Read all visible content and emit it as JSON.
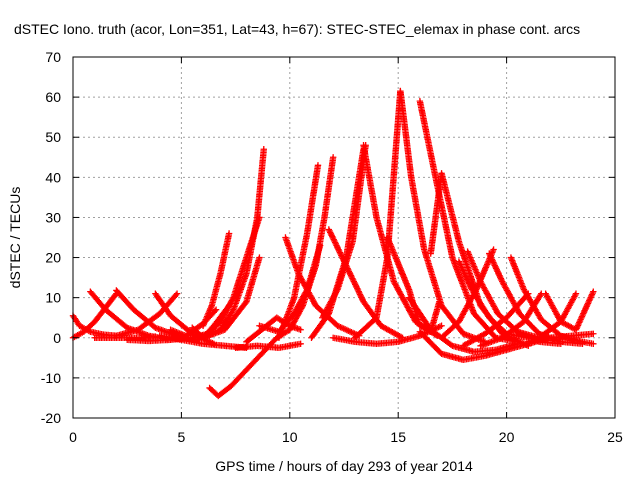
{
  "chart_data": {
    "type": "scatter",
    "title": "dSTEC Iono. truth (acor, Lon=351, Lat=43, h=67): STEC-STEC_elemax in phase cont. arcs",
    "xlabel": "GPS time / hours of day 293 of year 2014",
    "ylabel": "dSTEC  / TECUs",
    "xlim": [
      0,
      25
    ],
    "ylim": [
      -20,
      70
    ],
    "xticks": [
      0,
      5,
      10,
      15,
      20,
      25
    ],
    "yticks": [
      -20,
      -10,
      0,
      10,
      20,
      30,
      40,
      50,
      60,
      70
    ],
    "grid": true,
    "marker": "plus",
    "color": "#ff0000",
    "series": [
      {
        "x": [
          0.0,
          0.3,
          0.8,
          1.4,
          2.0
        ],
        "y": [
          5.5,
          3.0,
          1.5,
          0.8,
          0.5
        ]
      },
      {
        "x": [
          0.0,
          0.5,
          1.0,
          1.5,
          2.0
        ],
        "y": [
          0.0,
          1.5,
          4.0,
          7.5,
          11.0
        ]
      },
      {
        "x": [
          0.8,
          1.5,
          2.5,
          3.5,
          4.5
        ],
        "y": [
          11.5,
          7.0,
          2.5,
          0.5,
          -0.5
        ]
      },
      {
        "x": [
          1.0,
          2.0,
          3.0,
          3.8
        ],
        "y": [
          0.0,
          0.0,
          0.0,
          0.3
        ]
      },
      {
        "x": [
          2.0,
          2.8,
          3.8,
          4.8,
          5.8
        ],
        "y": [
          11.8,
          7.0,
          2.5,
          0.5,
          -0.5
        ]
      },
      {
        "x": [
          2.0,
          3.0,
          4.0,
          4.8
        ],
        "y": [
          0.5,
          2.0,
          6.0,
          11.0
        ]
      },
      {
        "x": [
          2.5,
          3.5,
          4.5,
          5.5,
          6.5
        ],
        "y": [
          -0.5,
          -0.8,
          -0.5,
          0.0,
          1.0
        ]
      },
      {
        "x": [
          3.8,
          4.5,
          5.5,
          6.5
        ],
        "y": [
          11.0,
          5.5,
          1.0,
          -1.5
        ]
      },
      {
        "x": [
          4.5,
          5.2,
          6.0,
          6.6
        ],
        "y": [
          2.0,
          0.5,
          3.5,
          7.0
        ]
      },
      {
        "x": [
          4.0,
          5.0,
          6.0,
          7.0,
          8.0
        ],
        "y": [
          0.5,
          -0.5,
          -1.5,
          -2.0,
          -2.5
        ]
      },
      {
        "x": [
          5.5,
          6.0,
          6.5,
          7.2
        ],
        "y": [
          2.5,
          0.0,
          3.0,
          8.0
        ]
      },
      {
        "x": [
          6.0,
          6.4,
          6.8,
          7.2
        ],
        "y": [
          3.0,
          8.0,
          16.0,
          26.0
        ]
      },
      {
        "x": [
          5.5,
          6.2,
          6.8,
          7.4,
          8.0,
          8.6
        ],
        "y": [
          0.0,
          1.0,
          4.0,
          10.0,
          20.0,
          30.0
        ]
      },
      {
        "x": [
          6.2,
          6.8,
          7.4,
          8.0,
          8.5,
          8.8
        ],
        "y": [
          0.5,
          2.0,
          7.0,
          16.0,
          30.0,
          47.0
        ]
      },
      {
        "x": [
          6.0,
          7.0,
          8.0,
          8.6
        ],
        "y": [
          0.0,
          2.0,
          9.0,
          20.0
        ]
      },
      {
        "x": [
          6.3,
          6.7,
          7.3,
          8.0,
          8.7,
          9.4,
          10.0
        ],
        "y": [
          -12.5,
          -14.5,
          -12.0,
          -8.0,
          -4.0,
          0.0,
          2.0
        ]
      },
      {
        "x": [
          7.5,
          8.5,
          9.5,
          10.5
        ],
        "y": [
          -2.5,
          -2.0,
          -2.5,
          -1.5
        ]
      },
      {
        "x": [
          8.0,
          8.7,
          9.4,
          10.0,
          10.5
        ],
        "y": [
          -1.0,
          2.0,
          5.0,
          3.0,
          2.0
        ]
      },
      {
        "x": [
          8.6,
          9.5,
          10.2,
          10.8,
          11.4
        ],
        "y": [
          3.0,
          1.5,
          6.0,
          12.0,
          23.0
        ]
      },
      {
        "x": [
          9.8,
          10.4,
          11.2,
          12.2,
          13.2
        ],
        "y": [
          25.0,
          16.0,
          8.0,
          3.0,
          0.5
        ]
      },
      {
        "x": [
          9.5,
          10.2,
          10.8,
          11.3
        ],
        "y": [
          0.0,
          10.0,
          26.0,
          43.0
        ]
      },
      {
        "x": [
          10.0,
          10.6,
          11.2,
          11.6,
          12.0
        ],
        "y": [
          2.0,
          8.0,
          18.0,
          30.0,
          45.0
        ]
      },
      {
        "x": [
          11.0,
          11.8,
          12.6,
          13.4
        ],
        "y": [
          0.0,
          6.0,
          20.0,
          47.0
        ]
      },
      {
        "x": [
          11.5,
          12.2,
          12.9,
          13.5
        ],
        "y": [
          5.0,
          12.0,
          24.0,
          48.0
        ]
      },
      {
        "x": [
          11.8,
          12.6,
          13.4,
          14.2,
          15.2
        ],
        "y": [
          27.0,
          18.0,
          9.0,
          3.0,
          0.0
        ]
      },
      {
        "x": [
          13.4,
          14.0,
          14.8,
          15.8,
          16.8
        ],
        "y": [
          48.0,
          30.0,
          14.0,
          4.0,
          0.5
        ]
      },
      {
        "x": [
          12.0,
          13.0,
          14.0,
          15.0,
          16.0,
          17.0
        ],
        "y": [
          0.0,
          -1.0,
          -1.5,
          -1.0,
          0.5,
          3.0
        ]
      },
      {
        "x": [
          13.0,
          14.0,
          14.5,
          15.1
        ],
        "y": [
          0.0,
          5.0,
          20.0,
          61.5
        ]
      },
      {
        "x": [
          15.1,
          15.6,
          16.2,
          17.0,
          18.0,
          19.0
        ],
        "y": [
          61.5,
          40.0,
          22.0,
          8.0,
          1.0,
          -1.0
        ]
      },
      {
        "x": [
          14.5,
          15.5,
          16.0,
          16.5,
          16.9
        ],
        "y": [
          25.0,
          12.0,
          3.0,
          1.5,
          9.0
        ]
      },
      {
        "x": [
          16.0,
          16.8,
          17.5,
          18.5,
          19.5,
          20.5
        ],
        "y": [
          59.0,
          38.0,
          20.0,
          6.0,
          0.0,
          -1.0
        ]
      },
      {
        "x": [
          15.5,
          16.5,
          17.5,
          18.5,
          19.5,
          20.5
        ],
        "y": [
          10.0,
          2.0,
          -2.0,
          -3.5,
          -3.0,
          -1.5
        ]
      },
      {
        "x": [
          16.5,
          17.0,
          17.8,
          18.8,
          19.8,
          21.0
        ],
        "y": [
          21.0,
          41.0,
          24.0,
          8.0,
          1.0,
          -2.0
        ]
      },
      {
        "x": [
          16.0,
          17.0,
          18.0,
          19.0,
          20.0,
          21.0,
          22.0
        ],
        "y": [
          1.5,
          -4.0,
          -5.5,
          -4.5,
          -3.0,
          -1.5,
          0.0
        ]
      },
      {
        "x": [
          17.8,
          18.4,
          19.2,
          20.0,
          21.0
        ],
        "y": [
          19.0,
          12.0,
          5.0,
          1.0,
          0.0
        ]
      },
      {
        "x": [
          18.2,
          18.8,
          19.6,
          20.5,
          21.5,
          22.5
        ],
        "y": [
          21.5,
          14.0,
          6.0,
          1.5,
          -1.0,
          -1.5
        ]
      },
      {
        "x": [
          19.2,
          19.8,
          20.6,
          21.5,
          22.5,
          23.5
        ],
        "y": [
          21.0,
          14.0,
          6.0,
          1.0,
          -1.0,
          -1.5
        ]
      },
      {
        "x": [
          20.2,
          20.8,
          21.6,
          22.5,
          23.5,
          24.0
        ],
        "y": [
          20.0,
          12.0,
          4.5,
          0.5,
          -1.0,
          -1.5
        ]
      },
      {
        "x": [
          17.0,
          17.8,
          18.6,
          19.4
        ],
        "y": [
          0.0,
          4.0,
          12.0,
          22.0
        ]
      },
      {
        "x": [
          18.0,
          19.0,
          20.0,
          21.0
        ],
        "y": [
          -2.0,
          1.0,
          5.0,
          11.0
        ]
      },
      {
        "x": [
          18.8,
          19.8,
          20.8,
          21.6
        ],
        "y": [
          -2.0,
          0.0,
          4.0,
          11.0
        ]
      },
      {
        "x": [
          20.5,
          21.5,
          22.5,
          23.2
        ],
        "y": [
          1.5,
          0.0,
          4.0,
          11.0
        ]
      },
      {
        "x": [
          21.8,
          22.5,
          23.2,
          24.0
        ],
        "y": [
          11.0,
          4.0,
          2.0,
          11.5
        ]
      },
      {
        "x": [
          21.0,
          22.0,
          23.0,
          24.0
        ],
        "y": [
          -1.0,
          0.0,
          0.5,
          1.0
        ]
      }
    ]
  }
}
